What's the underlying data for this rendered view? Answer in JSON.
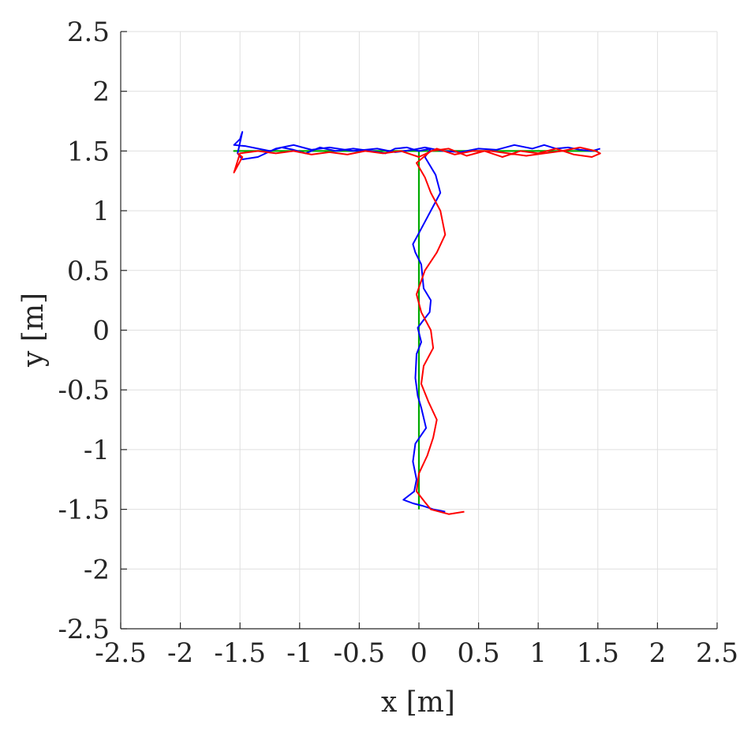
{
  "chart_data": {
    "type": "line",
    "title": "",
    "xlabel": "x [m]",
    "ylabel": "y [m]",
    "xlim": [
      -2.5,
      2.5
    ],
    "ylim": [
      -2.5,
      2.5
    ],
    "xticks": [
      -2.5,
      -2,
      -1.5,
      -1,
      -0.5,
      0,
      0.5,
      1,
      1.5,
      2,
      2.5
    ],
    "yticks": [
      -2.5,
      -2,
      -1.5,
      -1,
      -0.5,
      0,
      0.5,
      1,
      1.5,
      2,
      2.5
    ],
    "xtick_labels": [
      "-2.5",
      "-2",
      "-1.5",
      "-1",
      "-0.5",
      "0",
      "0.5",
      "1",
      "1.5",
      "2",
      "2.5"
    ],
    "ytick_labels": [
      "-2.5",
      "-2",
      "-1.5",
      "-1",
      "-0.5",
      "0",
      "0.5",
      "1",
      "1.5",
      "2",
      "2.5"
    ],
    "grid": true,
    "colors": {
      "reference": "#00aa00",
      "measured": "#0000ff",
      "estimated": "#ff0000",
      "axis": "#262626",
      "grid": "#dfdfdf"
    },
    "series": [
      {
        "color": "#00aa00",
        "x": [
          0,
          0,
          -1.55,
          1.5
        ],
        "y": [
          -1.5,
          1.5,
          1.5,
          1.5
        ]
      },
      {
        "color": "#0000ff",
        "x": [
          0.22,
          0.12,
          0.03,
          -0.05,
          -0.13,
          -0.04,
          -0.02,
          -0.05,
          -0.03,
          0.06,
          0.02,
          -0.01,
          -0.03,
          -0.02,
          0.02,
          -0.01,
          0.05,
          0.09,
          0.1,
          0.04,
          0.03,
          0.02,
          -0.03,
          -0.05,
          0.02,
          0.1,
          0.18,
          0.14,
          0.05,
          0.1,
          0.0,
          -0.1,
          -0.2,
          -0.28,
          -0.4,
          -0.55,
          -0.7,
          -0.83,
          -0.95,
          -1.05,
          -1.15,
          -1.25,
          -1.35,
          -1.45,
          -1.55,
          -1.5,
          -1.48,
          -1.52,
          -1.48,
          -1.35,
          -1.2,
          -1.05,
          -0.9,
          -0.75,
          -0.55,
          -0.35,
          -0.2,
          -0.05,
          0.05,
          0.2,
          0.35,
          0.5,
          0.65,
          0.8,
          0.95,
          1.05,
          1.15,
          1.25,
          1.35,
          1.45,
          1.52
        ],
        "y": [
          -1.52,
          -1.5,
          -1.47,
          -1.45,
          -1.42,
          -1.35,
          -1.25,
          -1.1,
          -0.95,
          -0.82,
          -0.65,
          -0.55,
          -0.4,
          -0.2,
          -0.1,
          0.02,
          0.1,
          0.15,
          0.25,
          0.35,
          0.45,
          0.55,
          0.65,
          0.72,
          0.85,
          1.0,
          1.15,
          1.3,
          1.45,
          1.52,
          1.5,
          1.53,
          1.52,
          1.48,
          1.5,
          1.52,
          1.5,
          1.53,
          1.48,
          1.51,
          1.53,
          1.5,
          1.52,
          1.54,
          1.55,
          1.6,
          1.66,
          1.48,
          1.43,
          1.45,
          1.52,
          1.55,
          1.51,
          1.53,
          1.5,
          1.52,
          1.49,
          1.51,
          1.53,
          1.5,
          1.49,
          1.52,
          1.51,
          1.55,
          1.52,
          1.55,
          1.52,
          1.53,
          1.51,
          1.5,
          1.52
        ]
      },
      {
        "color": "#ff0000",
        "x": [
          0.38,
          0.25,
          0.1,
          0.05,
          -0.02,
          0.0,
          0.07,
          0.12,
          0.15,
          0.08,
          0.02,
          0.04,
          0.12,
          0.1,
          0.02,
          -0.02,
          0.05,
          0.15,
          0.22,
          0.18,
          0.1,
          0.05,
          -0.02,
          0.1,
          0.25,
          0.4,
          0.55,
          0.7,
          0.85,
          1.0,
          1.15,
          1.3,
          1.45,
          1.52,
          1.48,
          1.35,
          1.2,
          1.05,
          0.9,
          0.75,
          0.6,
          0.45,
          0.3,
          0.15,
          0.0,
          -0.15,
          -0.3,
          -0.45,
          -0.6,
          -0.75,
          -0.9,
          -1.05,
          -1.2,
          -1.35,
          -1.5,
          -1.55,
          -1.48,
          -1.52
        ],
        "y": [
          -1.52,
          -1.54,
          -1.5,
          -1.44,
          -1.35,
          -1.2,
          -1.05,
          -0.9,
          -0.75,
          -0.6,
          -0.45,
          -0.3,
          -0.15,
          0.0,
          0.15,
          0.3,
          0.5,
          0.65,
          0.8,
          1.0,
          1.15,
          1.28,
          1.4,
          1.5,
          1.52,
          1.46,
          1.5,
          1.45,
          1.5,
          1.48,
          1.52,
          1.47,
          1.45,
          1.48,
          1.5,
          1.53,
          1.5,
          1.48,
          1.46,
          1.48,
          1.5,
          1.5,
          1.47,
          1.52,
          1.45,
          1.5,
          1.48,
          1.5,
          1.47,
          1.49,
          1.47,
          1.5,
          1.48,
          1.5,
          1.48,
          1.32,
          1.45,
          1.48
        ]
      }
    ]
  }
}
